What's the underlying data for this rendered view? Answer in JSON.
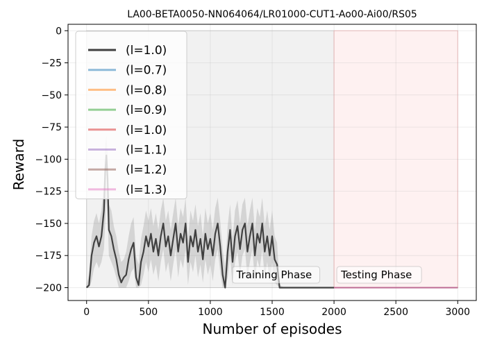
{
  "chart_data": {
    "type": "line",
    "title": "LA00-BETA0050-NN064064/LR01000-CUT1-Ao00-Ai00/RS05",
    "xlabel": "Number of episodes",
    "ylabel": "Reward",
    "xlim": [
      -150,
      3150
    ],
    "ylim": [
      -210,
      5
    ],
    "xticks": [
      0,
      500,
      1000,
      1500,
      2000,
      2500,
      3000
    ],
    "xtick_labels": [
      "0",
      "500",
      "1000",
      "1500",
      "2000",
      "2500",
      "3000"
    ],
    "yticks": [
      0,
      -25,
      -50,
      -75,
      -100,
      -125,
      -150,
      -175,
      -200
    ],
    "ytick_labels": [
      "0",
      "−25",
      "−50",
      "−75",
      "−100",
      "−125",
      "−150",
      "−175",
      "−200"
    ],
    "grid": true,
    "legend_position": "top-left",
    "regions": [
      {
        "name": "training-phase",
        "label": "Training Phase",
        "x0": 0,
        "x1": 2000,
        "y0": -200,
        "y1": 0,
        "color": "#e8e8e8"
      },
      {
        "name": "testing-phase",
        "label": "Testing Phase",
        "x0": 2000,
        "x1": 3000,
        "y0": -200,
        "y1": 0,
        "color": "#fde5e5"
      }
    ],
    "training_series": {
      "name": "(l=1.0)",
      "color": "#404040",
      "x": [
        0,
        20,
        40,
        60,
        80,
        100,
        120,
        140,
        150,
        160,
        170,
        180,
        200,
        220,
        240,
        260,
        280,
        300,
        320,
        340,
        360,
        380,
        400,
        420,
        440,
        460,
        480,
        500,
        520,
        540,
        560,
        580,
        600,
        620,
        640,
        660,
        680,
        700,
        720,
        740,
        760,
        780,
        800,
        820,
        840,
        860,
        880,
        900,
        920,
        940,
        960,
        980,
        1000,
        1020,
        1040,
        1060,
        1080,
        1100,
        1120,
        1140,
        1160,
        1180,
        1200,
        1220,
        1240,
        1260,
        1280,
        1300,
        1320,
        1340,
        1360,
        1380,
        1400,
        1420,
        1440,
        1460,
        1480,
        1500,
        1520,
        1540,
        1560,
        1600,
        2000
      ],
      "y": [
        -200,
        -198,
        -175,
        -165,
        -160,
        -168,
        -160,
        -140,
        -110,
        -97,
        -115,
        -155,
        -160,
        -170,
        -178,
        -190,
        -196,
        -192,
        -190,
        -178,
        -170,
        -165,
        -192,
        -198,
        -180,
        -172,
        -160,
        -168,
        -158,
        -172,
        -162,
        -175,
        -160,
        -150,
        -168,
        -160,
        -175,
        -162,
        -150,
        -172,
        -158,
        -165,
        -150,
        -180,
        -160,
        -168,
        -155,
        -172,
        -162,
        -178,
        -158,
        -170,
        -162,
        -175,
        -158,
        -150,
        -168,
        -190,
        -200,
        -172,
        -155,
        -180,
        -160,
        -152,
        -170,
        -155,
        -150,
        -172,
        -160,
        -150,
        -175,
        -158,
        -165,
        -150,
        -172,
        -160,
        -175,
        -160,
        -178,
        -182,
        -200,
        -200,
        -200
      ],
      "band_lower": [
        -200,
        -200,
        -195,
        -185,
        -180,
        -185,
        -180,
        -170,
        -150,
        -130,
        -145,
        -175,
        -180,
        -185,
        -192,
        -200,
        -200,
        -200,
        -200,
        -195,
        -188,
        -185,
        -200,
        -200,
        -198,
        -190,
        -180,
        -188,
        -178,
        -190,
        -182,
        -195,
        -180,
        -170,
        -188,
        -180,
        -195,
        -182,
        -170,
        -192,
        -178,
        -185,
        -170,
        -198,
        -180,
        -188,
        -175,
        -192,
        -182,
        -196,
        -178,
        -190,
        -182,
        -195,
        -178,
        -170,
        -188,
        -200,
        -200,
        -192,
        -175,
        -198,
        -180,
        -172,
        -190,
        -175,
        -170,
        -192,
        -180,
        -170,
        -195,
        -178,
        -185,
        -170,
        -192,
        -180,
        -195,
        -180,
        -196,
        -198,
        -200,
        -200,
        -200
      ],
      "band_upper": [
        -198,
        -190,
        -160,
        -148,
        -142,
        -150,
        -140,
        -118,
        -88,
        -82,
        -95,
        -135,
        -140,
        -152,
        -160,
        -172,
        -180,
        -178,
        -172,
        -160,
        -150,
        -145,
        -175,
        -182,
        -162,
        -152,
        -140,
        -148,
        -138,
        -152,
        -142,
        -155,
        -140,
        -130,
        -148,
        -140,
        -155,
        -142,
        -130,
        -152,
        -138,
        -145,
        -130,
        -162,
        -140,
        -148,
        -135,
        -152,
        -142,
        -160,
        -138,
        -150,
        -142,
        -155,
        -138,
        -130,
        -148,
        -170,
        -185,
        -152,
        -135,
        -162,
        -140,
        -132,
        -150,
        -135,
        -130,
        -152,
        -140,
        -130,
        -155,
        -138,
        -145,
        -130,
        -152,
        -140,
        -155,
        -140,
        -160,
        -165,
        -198,
        -200,
        -200
      ]
    },
    "series": [
      {
        "name": "(l=1.0)",
        "color": "#404040",
        "style": "training"
      },
      {
        "name": "(l=0.7)",
        "color": "#1f77b4",
        "x": [
          2000,
          3000
        ],
        "y": [
          -200,
          -200
        ]
      },
      {
        "name": "(l=0.8)",
        "color": "#ff7f0e",
        "x": [
          2000,
          3000
        ],
        "y": [
          -200,
          -200
        ]
      },
      {
        "name": "(l=0.9)",
        "color": "#2ca02c",
        "x": [
          2000,
          3000
        ],
        "y": [
          -200,
          -200
        ]
      },
      {
        "name": "(l=1.0)",
        "color": "#d62728",
        "x": [
          2000,
          3000
        ],
        "y": [
          -200,
          -200
        ]
      },
      {
        "name": "(l=1.1)",
        "color": "#9467bd",
        "x": [
          2000,
          3000
        ],
        "y": [
          -200,
          -200
        ]
      },
      {
        "name": "(l=1.2)",
        "color": "#8c564b",
        "x": [
          2000,
          3000
        ],
        "y": [
          -200,
          -200
        ]
      },
      {
        "name": "(l=1.3)",
        "color": "#e377c2",
        "x": [
          2000,
          3000
        ],
        "y": [
          -200,
          -200
        ]
      }
    ]
  }
}
